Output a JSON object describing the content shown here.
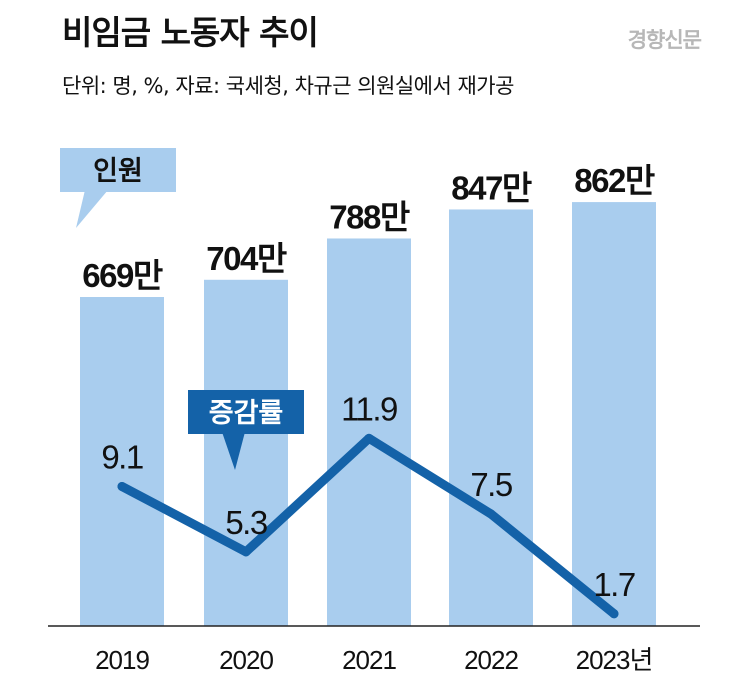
{
  "header": {
    "title": "비임금 노동자 추이",
    "subtitle": "단위: 명, %, 자료: 국세청, 차규근 의원실에서 재가공",
    "watermark": "경향신문"
  },
  "chart_data": {
    "type": "bar",
    "categories": [
      "2019",
      "2020",
      "2021",
      "2022",
      "2023년"
    ],
    "series": [
      {
        "name": "인원",
        "type": "bar",
        "values": [
          669,
          704,
          788,
          847,
          862
        ],
        "labels": [
          "669만",
          "704만",
          "788만",
          "847만",
          "862만"
        ]
      },
      {
        "name": "증감률",
        "type": "line",
        "values": [
          9.1,
          5.3,
          11.9,
          7.5,
          1.7
        ],
        "labels": [
          "9.1",
          "5.3",
          "11.9",
          "7.5",
          "1.7"
        ]
      }
    ],
    "colors": {
      "bar": "#a9cdee",
      "line": "#1462a8",
      "legend_bar": "#a9cdee",
      "legend_line": "#1462a8"
    }
  }
}
